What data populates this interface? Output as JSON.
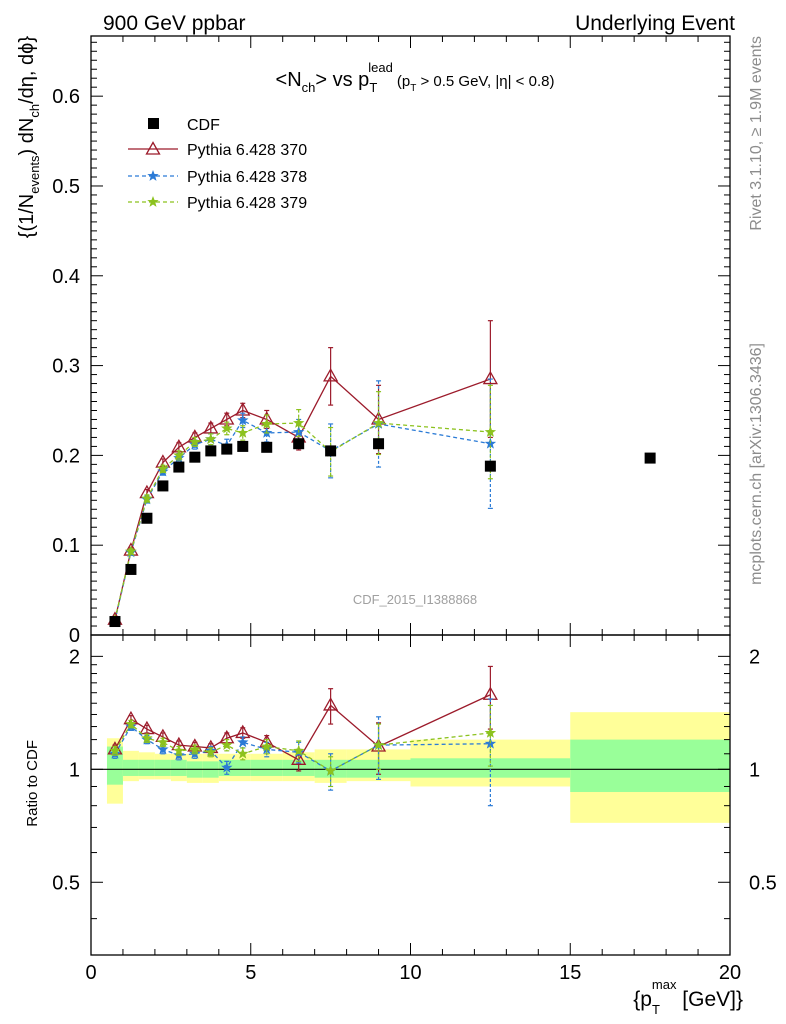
{
  "header": {
    "left": "900 GeV ppbar",
    "right": "Underlying Event"
  },
  "side": {
    "rivet": "Rivet 3.1.10, ≥ 1.9M events",
    "mcplots": "mcplots.cern.ch [arXiv:1306.3436]"
  },
  "watermark": "CDF_2015_I1388868",
  "colors": {
    "cdf": "#000000",
    "p370": "#9c1b2b",
    "p378": "#2b7bd6",
    "p379": "#8cc21e",
    "band_outer": "#ffff99",
    "band_inner": "#99ff99"
  },
  "chart_data": [
    {
      "type": "scatter",
      "title_parts": {
        "a": "<N",
        "a_sub": "ch",
        "b": "> vs p",
        "b_sub": "T",
        "b_sup": "lead",
        "c": "(p",
        "c_sub": "T",
        "d": " > 0.5 GeV, |η| < 0.8)"
      },
      "ylabel_parts": {
        "a": "{(1/N",
        "a_sub": "events",
        "b": ") dN",
        "b_sub": "ch",
        "c": "/dη, dϕ}"
      },
      "xlim": [
        0,
        20
      ],
      "ylim": [
        0,
        0.667
      ],
      "yticks": [
        0.1,
        0.2,
        0.3,
        0.4,
        0.5,
        0.6
      ],
      "yticklabels": [
        "0.1",
        "0.2",
        "0.3",
        "0.4",
        "0.5",
        "0.6"
      ],
      "y_zero_label": "0",
      "legend_position": "top-left",
      "grid": false,
      "x": [
        0.75,
        1.25,
        1.75,
        2.25,
        2.75,
        3.25,
        3.75,
        4.25,
        4.75,
        5.5,
        6.5,
        7.5,
        9.0,
        12.5,
        17.5
      ],
      "series": [
        {
          "name": "CDF",
          "marker": "square",
          "color": "#000000",
          "line": "none",
          "x": [
            0.75,
            1.25,
            1.75,
            2.25,
            2.75,
            3.25,
            3.75,
            4.25,
            4.75,
            5.5,
            6.5,
            7.5,
            9.0,
            12.5,
            17.5
          ],
          "y": [
            0.015,
            0.073,
            0.13,
            0.166,
            0.187,
            0.198,
            0.205,
            0.207,
            0.21,
            0.209,
            0.213,
            0.205,
            0.213,
            0.188,
            0.197
          ]
        },
        {
          "name": "Pythia 6.428 370",
          "marker": "triangle",
          "color": "#9c1b2b",
          "line": "solid",
          "x": [
            0.75,
            1.25,
            1.75,
            2.25,
            2.75,
            3.25,
            3.75,
            4.25,
            4.75,
            5.5,
            6.5,
            7.5,
            9.0,
            12.5
          ],
          "y": [
            0.017,
            0.094,
            0.158,
            0.192,
            0.209,
            0.22,
            0.23,
            0.24,
            0.25,
            0.24,
            0.22,
            0.288,
            0.24,
            0.285
          ],
          "err": [
            0.002,
            0.003,
            0.004,
            0.004,
            0.005,
            0.005,
            0.006,
            0.007,
            0.008,
            0.01,
            0.014,
            0.032,
            0.038,
            0.065
          ]
        },
        {
          "name": "Pythia 6.428 378",
          "marker": "star",
          "color": "#2b7bd6",
          "line": "dashed",
          "x": [
            0.75,
            1.25,
            1.75,
            2.25,
            2.75,
            3.25,
            3.75,
            4.25,
            4.75,
            5.5,
            6.5,
            7.5,
            9.0,
            12.5
          ],
          "y": [
            0.016,
            0.092,
            0.151,
            0.182,
            0.197,
            0.212,
            0.218,
            0.211,
            0.239,
            0.225,
            0.226,
            0.205,
            0.235,
            0.213
          ],
          "err": [
            0.002,
            0.003,
            0.004,
            0.004,
            0.005,
            0.005,
            0.006,
            0.007,
            0.008,
            0.01,
            0.014,
            0.03,
            0.048,
            0.072
          ]
        },
        {
          "name": "Pythia 6.428 379",
          "marker": "star",
          "color": "#8cc21e",
          "line": "dashed",
          "x": [
            0.75,
            1.25,
            1.75,
            2.25,
            2.75,
            3.25,
            3.75,
            4.25,
            4.75,
            5.5,
            6.5,
            7.5,
            9.0,
            12.5
          ],
          "y": [
            0.017,
            0.093,
            0.152,
            0.185,
            0.2,
            0.215,
            0.218,
            0.23,
            0.225,
            0.235,
            0.236,
            0.204,
            0.236,
            0.226
          ],
          "err": [
            0.002,
            0.003,
            0.004,
            0.004,
            0.005,
            0.005,
            0.006,
            0.007,
            0.008,
            0.01,
            0.015,
            0.027,
            0.035,
            0.052
          ]
        }
      ]
    },
    {
      "type": "scatter",
      "ylabel": "Ratio to CDF",
      "xlabel_parts": {
        "a": "{p",
        "a_sub": "T",
        "a_sup": "max",
        "b": " [GeV]}"
      },
      "xlim": [
        0,
        20
      ],
      "ylim": [
        0.32,
        2.28
      ],
      "xticks": [
        0,
        5,
        10,
        15,
        20
      ],
      "xticklabels": [
        "0",
        "5",
        "10",
        "15",
        "20"
      ],
      "yticks": [
        0.5,
        1,
        2
      ],
      "yticklabels": [
        "0.5",
        "1",
        "2"
      ],
      "reference_line": 1.0,
      "bands": {
        "edges": [
          0.5,
          1.0,
          1.5,
          2.0,
          2.5,
          3.0,
          3.5,
          4.0,
          5.0,
          6.0,
          7.0,
          8.0,
          10.0,
          15.0,
          20.0
        ],
        "outer_low": [
          0.81,
          0.93,
          0.94,
          0.94,
          0.93,
          0.92,
          0.92,
          0.93,
          0.93,
          0.93,
          0.92,
          0.93,
          0.9,
          0.72
        ],
        "outer_high": [
          1.21,
          1.12,
          1.11,
          1.1,
          1.1,
          1.1,
          1.1,
          1.1,
          1.1,
          1.11,
          1.13,
          1.13,
          1.2,
          1.42
        ],
        "inner_low": [
          0.91,
          0.96,
          0.96,
          0.96,
          0.96,
          0.95,
          0.95,
          0.96,
          0.96,
          0.96,
          0.95,
          0.95,
          0.95,
          0.87
        ],
        "inner_high": [
          1.15,
          1.06,
          1.06,
          1.06,
          1.06,
          1.05,
          1.05,
          1.06,
          1.06,
          1.06,
          1.06,
          1.06,
          1.07,
          1.2
        ]
      },
      "series": [
        {
          "name": "Pythia 6.428 370",
          "marker": "triangle",
          "color": "#9c1b2b",
          "line": "solid",
          "x": [
            0.75,
            1.25,
            1.75,
            2.25,
            2.75,
            3.25,
            3.75,
            4.25,
            4.75,
            5.5,
            6.5,
            7.5,
            9.0,
            12.5
          ],
          "y": [
            1.13,
            1.36,
            1.28,
            1.22,
            1.16,
            1.15,
            1.14,
            1.21,
            1.25,
            1.18,
            1.06,
            1.48,
            1.15,
            1.58
          ],
          "err": [
            0.03,
            0.03,
            0.03,
            0.03,
            0.03,
            0.03,
            0.03,
            0.04,
            0.04,
            0.05,
            0.07,
            0.16,
            0.18,
            0.3
          ]
        },
        {
          "name": "Pythia 6.428 378",
          "marker": "star",
          "color": "#2b7bd6",
          "line": "dashed",
          "x": [
            0.75,
            1.25,
            1.75,
            2.25,
            2.75,
            3.25,
            3.75,
            4.25,
            4.75,
            5.5,
            6.5,
            7.5,
            9.0,
            12.5
          ],
          "y": [
            1.1,
            1.3,
            1.2,
            1.13,
            1.09,
            1.1,
            1.12,
            1.01,
            1.18,
            1.13,
            1.11,
            0.99,
            1.16,
            1.17
          ],
          "err": [
            0.03,
            0.03,
            0.03,
            0.03,
            0.03,
            0.03,
            0.03,
            0.04,
            0.04,
            0.05,
            0.07,
            0.11,
            0.22,
            0.37
          ]
        },
        {
          "name": "Pythia 6.428 379",
          "marker": "star",
          "color": "#8cc21e",
          "line": "dashed",
          "x": [
            0.75,
            1.25,
            1.75,
            2.25,
            2.75,
            3.25,
            3.75,
            4.25,
            4.75,
            5.5,
            6.5,
            7.5,
            9.0,
            12.5
          ],
          "y": [
            1.12,
            1.32,
            1.21,
            1.18,
            1.12,
            1.13,
            1.11,
            1.16,
            1.1,
            1.15,
            1.12,
            0.99,
            1.16,
            1.25
          ],
          "err": [
            0.03,
            0.03,
            0.03,
            0.03,
            0.03,
            0.03,
            0.03,
            0.04,
            0.04,
            0.05,
            0.07,
            0.09,
            0.16,
            0.23
          ]
        }
      ]
    }
  ]
}
